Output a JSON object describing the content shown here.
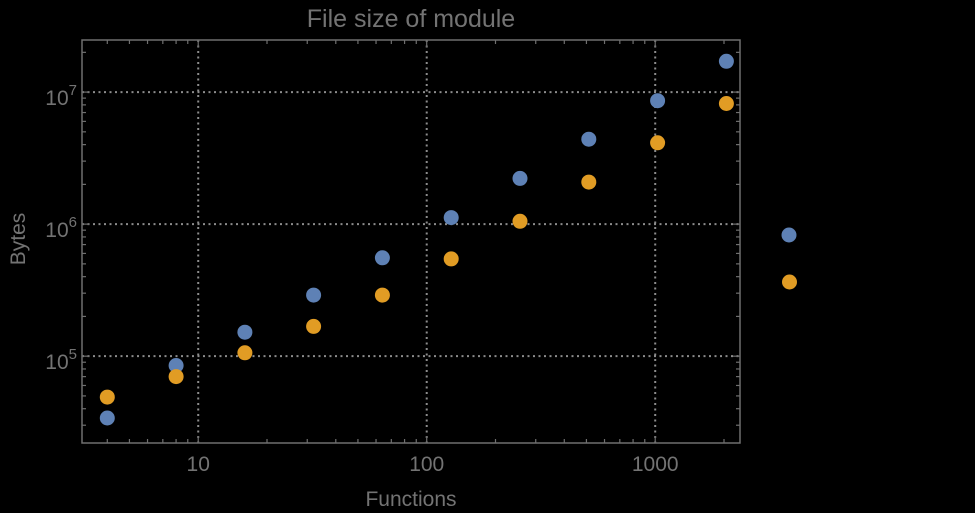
{
  "title": "File size of module",
  "colors": {
    "background": "#000000",
    "frame": "#6f6f6f",
    "grid": "#8c8c8c",
    "text": "#737373",
    "blue": "#5e81b5",
    "orange": "#e19c24"
  },
  "chart_data": {
    "type": "scatter",
    "title": "File size of module",
    "xlabel": "Functions",
    "ylabel": "Bytes",
    "x_scale": "log",
    "y_scale": "log",
    "xlim": [
      3.1,
      2350
    ],
    "ylim": [
      22000,
      24800000
    ],
    "grid": "dotted",
    "x": [
      4,
      8,
      16,
      32,
      64,
      128,
      256,
      512,
      1024,
      2048
    ],
    "series": [
      {
        "name": "blue-series",
        "color": "#5e81b5",
        "values": [
          34000,
          85000,
          152000,
          290000,
          556000,
          1120000,
          2220000,
          4400000,
          8600000,
          17100000
        ]
      },
      {
        "name": "orange-series",
        "color": "#e19c24",
        "values": [
          49000,
          70000,
          106000,
          168000,
          290000,
          545000,
          1050000,
          2080000,
          4130000,
          8200000
        ]
      }
    ],
    "x_ticks": [
      10,
      100,
      1000
    ],
    "x_tick_labels": [
      "10",
      "100",
      "1000"
    ],
    "y_ticks": [
      100000,
      1000000,
      10000000
    ],
    "y_tick_labels": [
      "10^5",
      "10^6",
      "10^7"
    ],
    "legend": {
      "position": "right",
      "labels_visible": false,
      "markers": [
        {
          "name": "blue-series-marker",
          "color": "#5e81b5"
        },
        {
          "name": "orange-series-marker",
          "color": "#e19c24"
        }
      ]
    }
  }
}
